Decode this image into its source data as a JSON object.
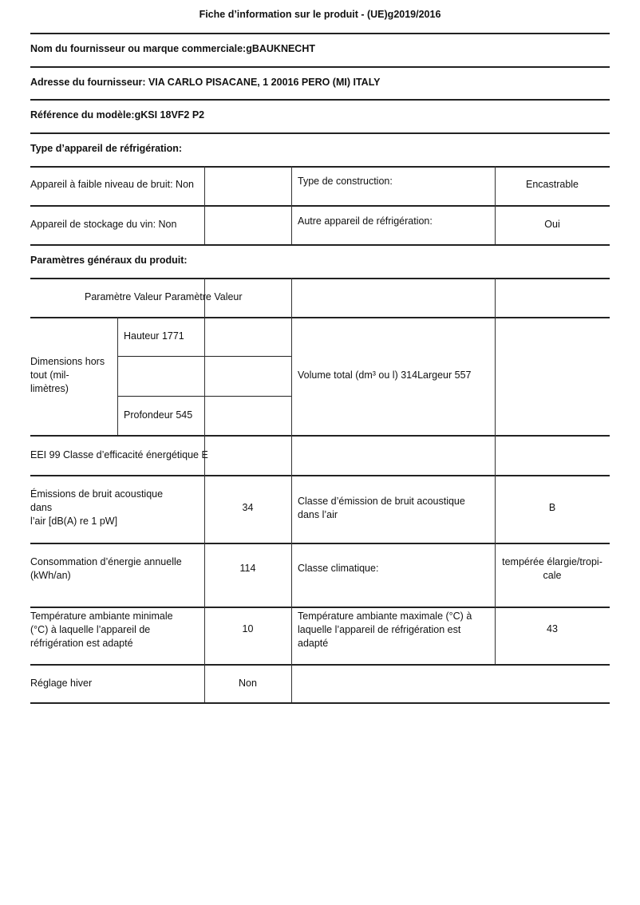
{
  "title": "Fiche d’information sur le produit - (UE)g2019/2016",
  "supplier": "Nom du fournisseur ou marque commerciale:gBAUKNECHT",
  "address": "Adresse du fournisseur: VIA CARLO PISACANE, 1 20016 PERO (MI) ITALY",
  "model": "Référence du modèle:gKSI 18VF2 P2",
  "type_heading": "Type d’appareil de réfrigération:",
  "low_noise": "Appareil à faible niveau de bruit: Non",
  "construction_label": "Type de construction:",
  "construction_value": "Encastrable",
  "wine": "Appareil de stockage du vin: Non",
  "other_label": "Autre appareil de réfrigération:",
  "other_value": "Oui",
  "general_heading": "Paramètres généraux du produit:",
  "param_header": "Paramètre Valeur Paramètre Valeur",
  "dimensions_label": [
    "Dimensions hors",
    "tout (mil-",
    "limètres)"
  ],
  "height": "Hauteur 1771",
  "depth": "Profondeur 545",
  "volume": "Volume total (dm³ ou l) 314Largeur 557",
  "eei": "EEI 99 Classe d’efficacité énergétique E",
  "noise_label": [
    "Émissions de bruit acoustique",
    "dans",
    "l’air [dB(A) re 1 pW]"
  ],
  "noise_value": "34",
  "noise_class_label": [
    "Classe d’émission de bruit acoustique",
    "dans l’air"
  ],
  "noise_class_value": "B",
  "energy_label": [
    "Consommation d’énergie annuelle",
    "(kWh/an)"
  ],
  "energy_value": "114",
  "climate_label": "Classe climatique:",
  "climate_value": [
    "tempérée élargie/tropi-",
    "cale"
  ],
  "tmin_label": [
    "Température ambiante minimale",
    "(°C) à laquelle l’appareil de",
    "réfrigération est adapté"
  ],
  "tmin_value": "10",
  "tmax_label": [
    "Température ambiante maximale (°C) à",
    "laquelle l’appareil de réfrigération est",
    "adapté"
  ],
  "tmax_value": "43",
  "winter_label": "Réglage hiver",
  "winter_value": "Non"
}
